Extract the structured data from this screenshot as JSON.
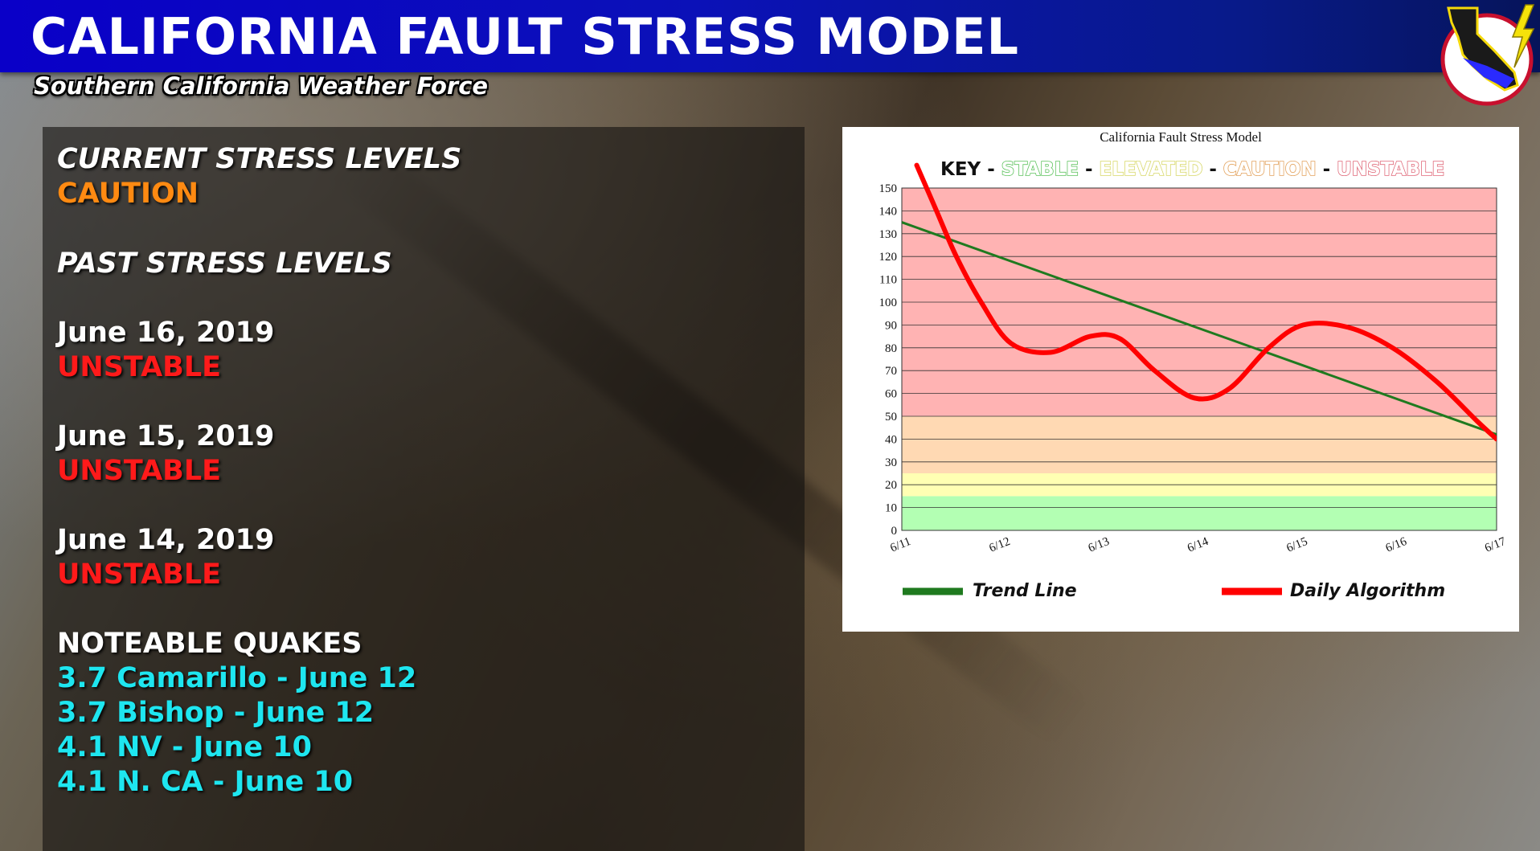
{
  "header": {
    "title": "CALIFORNIA FAULT STRESS MODEL",
    "subtitle": "Southern California Weather Force"
  },
  "colors": {
    "banner": "#0a00c8",
    "caution": "#ff8a12",
    "unstable": "#ff1a1a",
    "quakes": "#1ee6f0",
    "key_stable": "#5fc35f",
    "key_elevated": "#d8d86a",
    "key_caution": "#e3a35e",
    "key_unstable": "#e06a7a",
    "band_unstable": "#ffb3b3",
    "band_caution": "#ffd9b3",
    "band_elevated": "#ffffb3",
    "band_stable": "#b3ffb3",
    "trend": "#1f7a1f",
    "daily": "#ff0000"
  },
  "left_panel": {
    "current_heading": "CURRENT STRESS LEVELS",
    "current_level": "CAUTION",
    "past_heading": "PAST STRESS LEVELS",
    "past": [
      {
        "date": "June 16, 2019",
        "level": "UNSTABLE"
      },
      {
        "date": "June 15, 2019",
        "level": "UNSTABLE"
      },
      {
        "date": "June 14, 2019",
        "level": "UNSTABLE"
      }
    ],
    "quakes_heading": "NOTEABLE QUAKES",
    "quakes": [
      "3.7 Camarillo - June 12",
      "3.7 Bishop - June 12",
      "4.1 NV - June 10",
      "4.1 N. CA - June 10"
    ]
  },
  "chart": {
    "key_label": "KEY",
    "key_sep": "-",
    "key_items": [
      "STABLE",
      "ELEVATED",
      "CAUTION",
      "UNSTABLE"
    ]
  },
  "chart_data": {
    "type": "line",
    "title": "California Fault Stress Model",
    "x": [
      "6/11",
      "6/12",
      "6/13",
      "6/14",
      "6/15",
      "6/16",
      "6/17"
    ],
    "ylim": [
      0,
      150
    ],
    "yticks": [
      0,
      10,
      20,
      30,
      40,
      50,
      60,
      70,
      80,
      90,
      100,
      110,
      120,
      130,
      140,
      150
    ],
    "grid": true,
    "legend_position": "bottom",
    "bands": [
      {
        "name": "STABLE",
        "from": 0,
        "to": 15
      },
      {
        "name": "ELEVATED",
        "from": 15,
        "to": 25
      },
      {
        "name": "CAUTION",
        "from": 25,
        "to": 50
      },
      {
        "name": "UNSTABLE",
        "from": 50,
        "to": 150
      }
    ],
    "series": [
      {
        "name": "Trend Line",
        "x": [
          0,
          6
        ],
        "values": [
          135,
          42
        ]
      },
      {
        "name": "Daily Algorithm",
        "x": [
          0.15,
          0.35,
          0.55,
          0.8,
          1.1,
          1.5,
          1.9,
          2.2,
          2.55,
          2.95,
          3.3,
          3.7,
          4.05,
          4.5,
          4.95,
          5.4,
          5.8,
          6.0
        ],
        "values": [
          160,
          140,
          120,
          100,
          82,
          78,
          85,
          84,
          70,
          58,
          62,
          80,
          90,
          89,
          80,
          65,
          48,
          40
        ]
      }
    ]
  }
}
